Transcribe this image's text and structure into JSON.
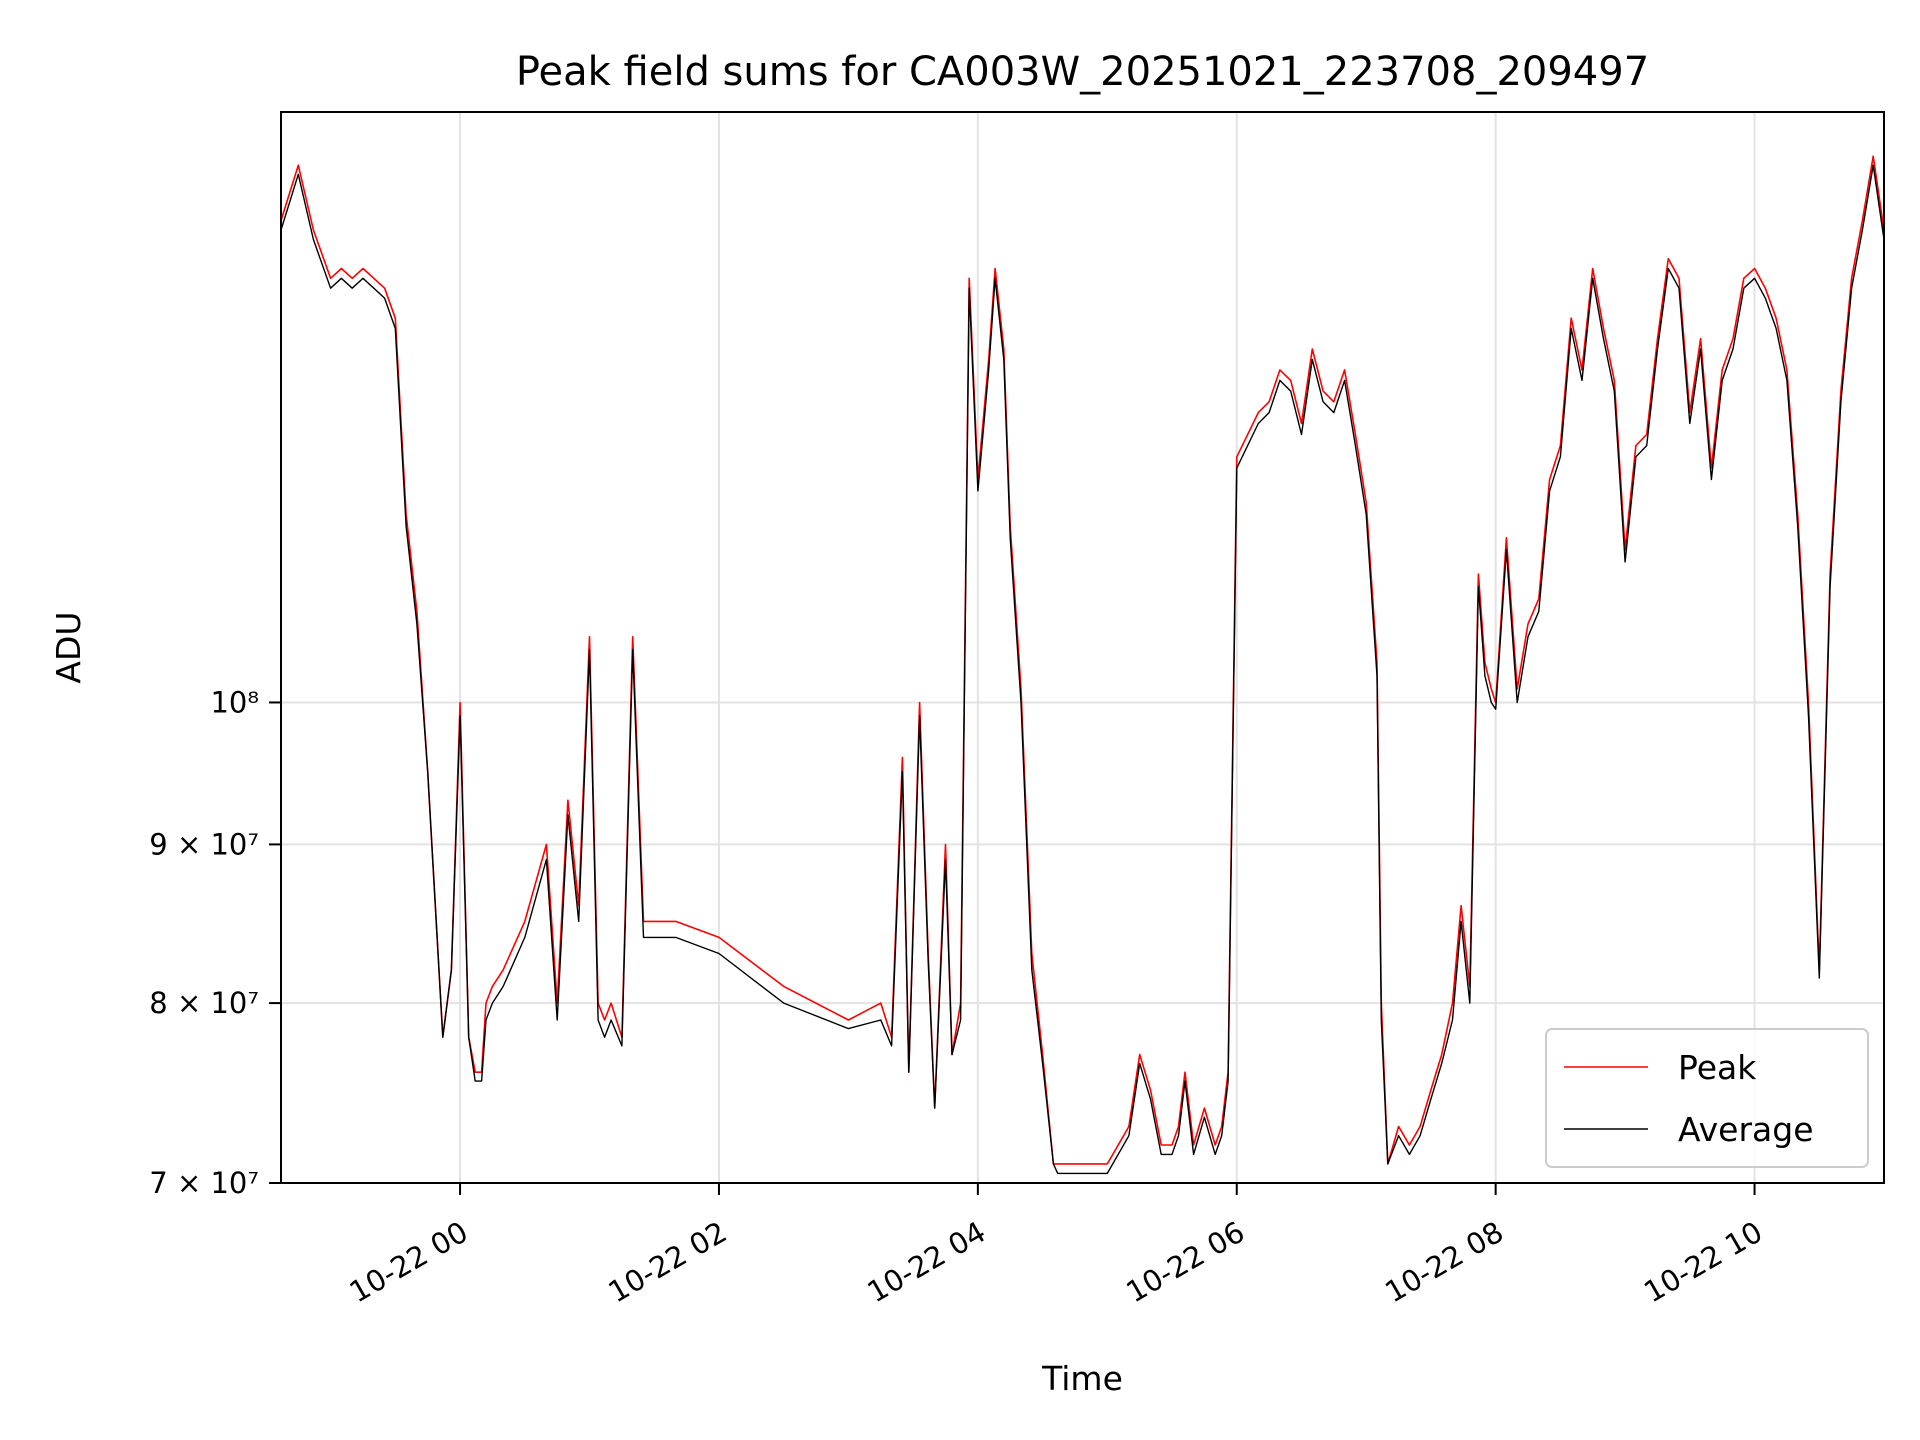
{
  "chart_data": {
    "type": "line",
    "title": "Peak field sums for CA003W_20251021_223708_209497",
    "xlabel": "Time",
    "ylabel": "ADU",
    "x_range": [
      "2025-10-21 22:37",
      "2025-10-22 11:00"
    ],
    "ylim": [
      70000000,
      155000000
    ],
    "yscale": "log",
    "grid": true,
    "legend_position": "lower-right",
    "x_ticks": [
      {
        "value": "2025-10-22 00:00",
        "label": "10-22 00"
      },
      {
        "value": "2025-10-22 02:00",
        "label": "10-22 02"
      },
      {
        "value": "2025-10-22 04:00",
        "label": "10-22 04"
      },
      {
        "value": "2025-10-22 06:00",
        "label": "10-22 06"
      },
      {
        "value": "2025-10-22 08:00",
        "label": "10-22 08"
      },
      {
        "value": "2025-10-22 10:00",
        "label": "10-22 10"
      }
    ],
    "y_ticks": [
      {
        "value": 70000000,
        "label": "7 × 10⁷"
      },
      {
        "value": 80000000,
        "label": "8 × 10⁷"
      },
      {
        "value": 90000000,
        "label": "9 × 10⁷"
      },
      {
        "value": 100000000,
        "label": "10⁸"
      }
    ],
    "x": [
      "2025-10-21 22:37",
      "2025-10-21 22:45",
      "2025-10-21 22:52",
      "2025-10-21 23:00",
      "2025-10-21 23:05",
      "2025-10-21 23:10",
      "2025-10-21 23:15",
      "2025-10-21 23:20",
      "2025-10-21 23:25",
      "2025-10-21 23:30",
      "2025-10-21 23:35",
      "2025-10-21 23:40",
      "2025-10-21 23:45",
      "2025-10-21 23:52",
      "2025-10-21 23:56",
      "2025-10-22 00:00",
      "2025-10-22 00:04",
      "2025-10-22 00:07",
      "2025-10-22 00:10",
      "2025-10-22 00:12",
      "2025-10-22 00:15",
      "2025-10-22 00:20",
      "2025-10-22 00:30",
      "2025-10-22 00:40",
      "2025-10-22 00:45",
      "2025-10-22 00:50",
      "2025-10-22 00:55",
      "2025-10-22 01:00",
      "2025-10-22 01:04",
      "2025-10-22 01:07",
      "2025-10-22 01:10",
      "2025-10-22 01:15",
      "2025-10-22 01:20",
      "2025-10-22 01:25",
      "2025-10-22 01:28",
      "2025-10-22 01:31",
      "2025-10-22 01:34",
      "2025-10-22 01:37",
      "2025-10-22 01:40",
      "2025-10-22 02:00",
      "2025-10-22 02:30",
      "2025-10-22 03:00",
      "2025-10-22 03:15",
      "2025-10-22 03:20",
      "2025-10-22 03:25",
      "2025-10-22 03:28",
      "2025-10-22 03:33",
      "2025-10-22 03:37",
      "2025-10-22 03:40",
      "2025-10-22 03:45",
      "2025-10-22 03:48",
      "2025-10-22 03:52",
      "2025-10-22 03:56",
      "2025-10-22 04:00",
      "2025-10-22 04:05",
      "2025-10-22 04:08",
      "2025-10-22 04:12",
      "2025-10-22 04:15",
      "2025-10-22 04:20",
      "2025-10-22 04:25",
      "2025-10-22 04:30",
      "2025-10-22 04:35",
      "2025-10-22 04:37",
      "2025-10-22 05:00",
      "2025-10-22 05:10",
      "2025-10-22 05:15",
      "2025-10-22 05:20",
      "2025-10-22 05:25",
      "2025-10-22 05:30",
      "2025-10-22 05:33",
      "2025-10-22 05:36",
      "2025-10-22 05:40",
      "2025-10-22 05:45",
      "2025-10-22 05:50",
      "2025-10-22 05:53",
      "2025-10-22 05:56",
      "2025-10-22 06:00",
      "2025-10-22 06:10",
      "2025-10-22 06:15",
      "2025-10-22 06:20",
      "2025-10-22 06:25",
      "2025-10-22 06:30",
      "2025-10-22 06:35",
      "2025-10-22 06:40",
      "2025-10-22 06:45",
      "2025-10-22 06:50",
      "2025-10-22 06:55",
      "2025-10-22 07:00",
      "2025-10-22 07:05",
      "2025-10-22 07:07",
      "2025-10-22 07:10",
      "2025-10-22 07:15",
      "2025-10-22 07:20",
      "2025-10-22 07:25",
      "2025-10-22 07:30",
      "2025-10-22 07:35",
      "2025-10-22 07:40",
      "2025-10-22 07:44",
      "2025-10-22 07:48",
      "2025-10-22 07:52",
      "2025-10-22 07:55",
      "2025-10-22 07:58",
      "2025-10-22 08:00",
      "2025-10-22 08:05",
      "2025-10-22 08:10",
      "2025-10-22 08:15",
      "2025-10-22 08:20",
      "2025-10-22 08:25",
      "2025-10-22 08:30",
      "2025-10-22 08:35",
      "2025-10-22 08:40",
      "2025-10-22 08:45",
      "2025-10-22 08:50",
      "2025-10-22 08:55",
      "2025-10-22 09:00",
      "2025-10-22 09:05",
      "2025-10-22 09:10",
      "2025-10-22 09:15",
      "2025-10-22 09:20",
      "2025-10-22 09:25",
      "2025-10-22 09:30",
      "2025-10-22 09:35",
      "2025-10-22 09:40",
      "2025-10-22 09:45",
      "2025-10-22 09:50",
      "2025-10-22 09:55",
      "2025-10-22 10:00",
      "2025-10-22 10:05",
      "2025-10-22 10:10",
      "2025-10-22 10:15",
      "2025-10-22 10:20",
      "2025-10-22 10:25",
      "2025-10-22 10:30",
      "2025-10-22 10:35",
      "2025-10-22 10:40",
      "2025-10-22 10:45",
      "2025-10-22 10:50",
      "2025-10-22 10:55",
      "2025-10-22 11:00"
    ],
    "series": [
      {
        "name": "Peak",
        "color": "#ff0000",
        "values": [
          143000000,
          149000000,
          142000000,
          137000000,
          138000000,
          137000000,
          138000000,
          137000000,
          136000000,
          133000000,
          115000000,
          107000000,
          95000000,
          78000000,
          82000000,
          100000000,
          78000000,
          76000000,
          76000000,
          80000000,
          81000000,
          82000000,
          85000000,
          90000000,
          80000000,
          93000000,
          86000000,
          105000000,
          80000000,
          79000000,
          80000000,
          78000000,
          105000000,
          85000000,
          85000000,
          85000000,
          85000000,
          85000000,
          85000000,
          84000000,
          81000000,
          79000000,
          80000000,
          78000000,
          96000000,
          76000000,
          100000000,
          83000000,
          74000000,
          90000000,
          77000000,
          80000000,
          137000000,
          118000000,
          129000000,
          138000000,
          130000000,
          114000000,
          101000000,
          83000000,
          77000000,
          71000000,
          71000000,
          71000000,
          73000000,
          77000000,
          75000000,
          72000000,
          72000000,
          73000000,
          76000000,
          72000000,
          74000000,
          72000000,
          73000000,
          76000000,
          120000000,
          124000000,
          125000000,
          128000000,
          127000000,
          123000000,
          130000000,
          126000000,
          125000000,
          128000000,
          122000000,
          116000000,
          103000000,
          80000000,
          71000000,
          73000000,
          72000000,
          73000000,
          75000000,
          77000000,
          80000000,
          86000000,
          81000000,
          110000000,
          103000000,
          101000000,
          100000000,
          113000000,
          101000000,
          106000000,
          108000000,
          118000000,
          121000000,
          133000000,
          128000000,
          138000000,
          132000000,
          127000000,
          112000000,
          121000000,
          122000000,
          131000000,
          139000000,
          137000000,
          124000000,
          131000000,
          119000000,
          128000000,
          131000000,
          137000000,
          138000000,
          136000000,
          133000000,
          128000000,
          115000000,
          100000000,
          82000000,
          110000000,
          126000000,
          137000000,
          143000000,
          150000000,
          142000000
        ]
      },
      {
        "name": "Average",
        "color": "#000000",
        "values": [
          142000000,
          148000000,
          141000000,
          136000000,
          137000000,
          136000000,
          137000000,
          136000000,
          135000000,
          132000000,
          114000000,
          106000000,
          95000000,
          78000000,
          82000000,
          99000000,
          78000000,
          75500000,
          75500000,
          79000000,
          80000000,
          81000000,
          84000000,
          89000000,
          79000000,
          92000000,
          85000000,
          104000000,
          79000000,
          78000000,
          79000000,
          77500000,
          104000000,
          84000000,
          84000000,
          84000000,
          84000000,
          84000000,
          84000000,
          83000000,
          80000000,
          78500000,
          79000000,
          77500000,
          95000000,
          76000000,
          99000000,
          82500000,
          74000000,
          89000000,
          77000000,
          79000000,
          136000000,
          117000000,
          128000000,
          137000000,
          129000000,
          113000000,
          100000000,
          82000000,
          76500000,
          71000000,
          70500000,
          70500000,
          72500000,
          76500000,
          74500000,
          71500000,
          71500000,
          72500000,
          75500000,
          71500000,
          73500000,
          71500000,
          72500000,
          75500000,
          119000000,
          123000000,
          124000000,
          127000000,
          126000000,
          122000000,
          129000000,
          125000000,
          124000000,
          127000000,
          121000000,
          115000000,
          102000000,
          79000000,
          71000000,
          72500000,
          71500000,
          72500000,
          74500000,
          76500000,
          79000000,
          85000000,
          80000000,
          109000000,
          102000000,
          100000000,
          99500000,
          112000000,
          100000000,
          105000000,
          107000000,
          117000000,
          120000000,
          132000000,
          127000000,
          137000000,
          131000000,
          126000000,
          111000000,
          120000000,
          121000000,
          130000000,
          138000000,
          136000000,
          123000000,
          130000000,
          118000000,
          127000000,
          130000000,
          136000000,
          137000000,
          135000000,
          132000000,
          127000000,
          114000000,
          99000000,
          81500000,
          109000000,
          125000000,
          136000000,
          142000000,
          149000000,
          141000000
        ]
      }
    ]
  }
}
